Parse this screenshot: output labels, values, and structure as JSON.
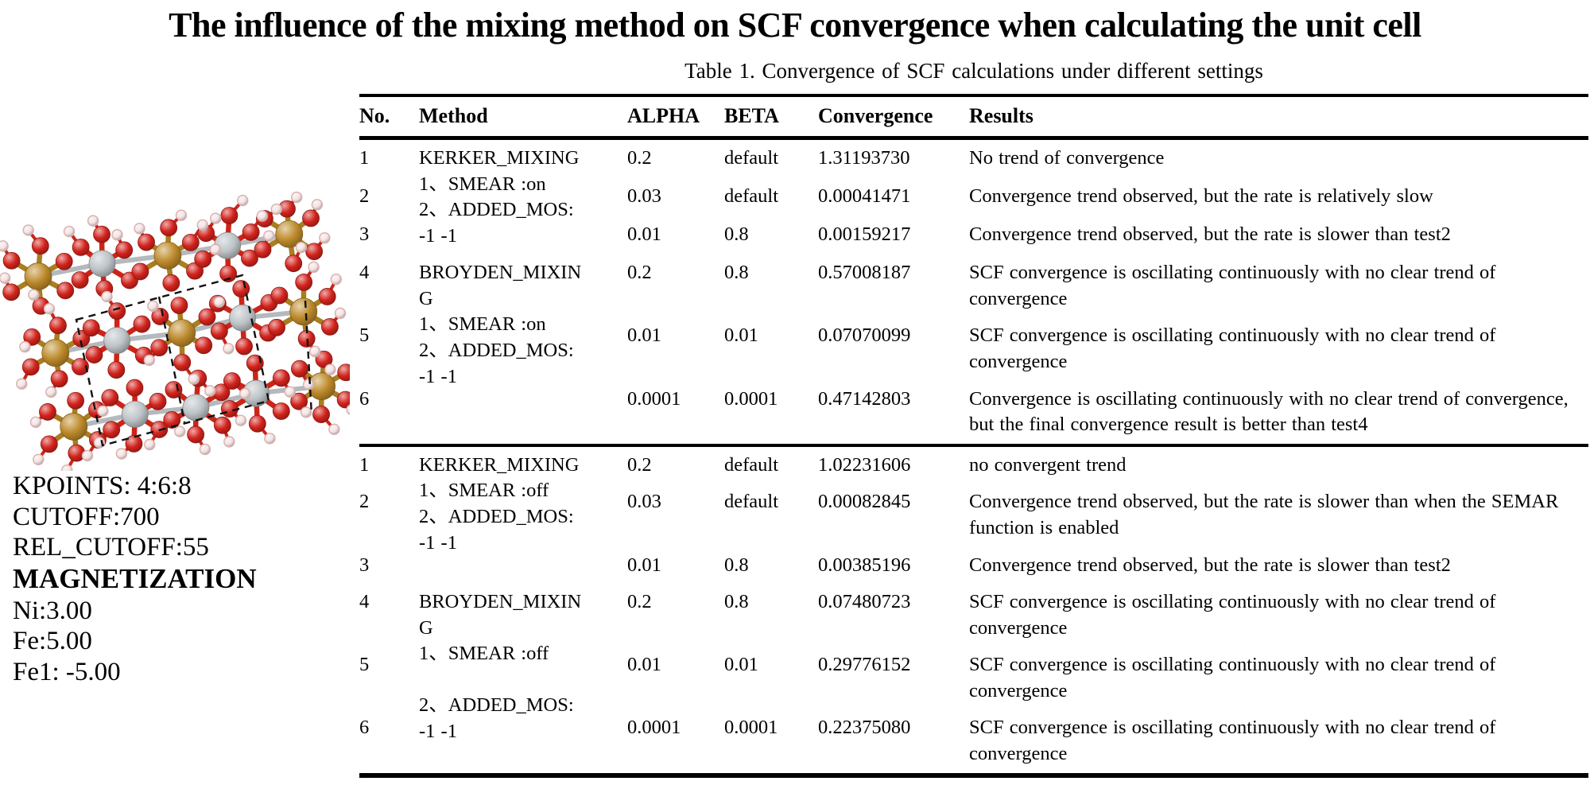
{
  "page": {
    "title": "The influence of the mixing method on SCF convergence when calculating the unit cell",
    "table_caption": "Table 1. Convergence of SCF calculations under different settings"
  },
  "left_panel": {
    "parameter_lines": [
      {
        "text": "KPOINTS: 4:6:8",
        "bold": false
      },
      {
        "text": "CUTOFF:700",
        "bold": false
      },
      {
        "text": "REL_CUTOFF:55",
        "bold": false
      },
      {
        "text": "MAGNETIZATION",
        "bold": true
      },
      {
        "text": "Ni:3.00",
        "bold": false
      },
      {
        "text": "Fe:5.00",
        "bold": false
      },
      {
        "text": "Fe1: -5.00",
        "bold": false
      }
    ],
    "molecule": {
      "description": "ball-and-stick crystal structure of the unit cell with dashed cell edges",
      "colors": {
        "oxygen": "#d2231c",
        "metal_gray": "#bdc3c7",
        "metal_gold": "#bd8a2b",
        "hydrogen": "#f5e3e3",
        "hydrogen_rim": "#d9b0b0",
        "bond_red": "#cd2418",
        "bond_gray": "#b4b9bd",
        "bond_gold": "#a87e20",
        "unit_cell": "#111111"
      }
    }
  },
  "table": {
    "headers": [
      "No.",
      "Method",
      "ALPHA",
      "BETA",
      "Convergence",
      "Results"
    ],
    "sections": [
      {
        "name": "smear-on",
        "groups": [
          {
            "method_lines": [
              "KERKER_MIXING",
              "1、SMEAR :on",
              "2、ADDED_MOS:",
              "-1 -1"
            ],
            "rows": [
              {
                "no": "1",
                "alpha": "0.2",
                "beta": "default",
                "convergence": "1.31193730",
                "results": "No trend of convergence"
              },
              {
                "no": "2",
                "alpha": "0.03",
                "beta": "default",
                "convergence": "0.00041471",
                "results": "Convergence trend observed, but the rate is relatively slow"
              },
              {
                "no": "3",
                "alpha": "0.01",
                "beta": "0.8",
                "convergence": "0.00159217",
                "results": "Convergence trend observed, but the rate is slower than test2"
              }
            ]
          },
          {
            "method_lines": [
              "BROYDEN_MIXING",
              "1、SMEAR :on",
              "2、ADDED_MOS:",
              "-1 -1"
            ],
            "rows": [
              {
                "no": "4",
                "alpha": "0.2",
                "beta": "0.8",
                "convergence": "0.57008187",
                "results": "SCF convergence is oscillating continuously with no clear trend of convergence"
              },
              {
                "no": "5",
                "alpha": "0.01",
                "beta": "0.01",
                "convergence": "0.07070099",
                "results": "SCF convergence is oscillating continuously with no clear trend of convergence"
              },
              {
                "no": "6",
                "alpha": "0.0001",
                "beta": "0.0001",
                "convergence": "0.47142803",
                "results": "Convergence is oscillating continuously with no clear trend of convergence, but the final convergence result is better than test4"
              }
            ]
          }
        ]
      },
      {
        "name": "smear-off",
        "groups": [
          {
            "method_lines": [
              "KERKER_MIXING",
              "1、SMEAR :off",
              "2、ADDED_MOS:",
              "-1 -1"
            ],
            "rows": [
              {
                "no": "1",
                "alpha": "0.2",
                "beta": "default",
                "convergence": "1.02231606",
                "results": "no convergent trend"
              },
              {
                "no": "2",
                "alpha": "0.03",
                "beta": "default",
                "convergence": "0.00082845",
                "results": "Convergence trend observed, but the rate is slower than when the SEMAR function is enabled"
              },
              {
                "no": "3",
                "alpha": "0.01",
                "beta": "0.8",
                "convergence": "0.00385196",
                "results": "Convergence trend observed, but the rate is slower than test2"
              }
            ]
          },
          {
            "method_lines": [
              "BROYDEN_MIXING",
              "1、SMEAR :off",
              "",
              "2、ADDED_MOS:",
              "-1 -1"
            ],
            "rows": [
              {
                "no": "4",
                "alpha": "0.2",
                "beta": "0.8",
                "convergence": "0.07480723",
                "results": "SCF convergence is oscillating continuously with no clear trend of convergence"
              },
              {
                "no": "5",
                "alpha": "0.01",
                "beta": "0.01",
                "convergence": "0.29776152",
                "results": "SCF convergence is oscillating continuously with no clear trend of convergence"
              },
              {
                "no": "6",
                "alpha": "0.0001",
                "beta": "0.0001",
                "convergence": "0.22375080",
                "results": "SCF convergence is oscillating continuously with no clear trend of convergence"
              }
            ]
          }
        ]
      }
    ]
  }
}
